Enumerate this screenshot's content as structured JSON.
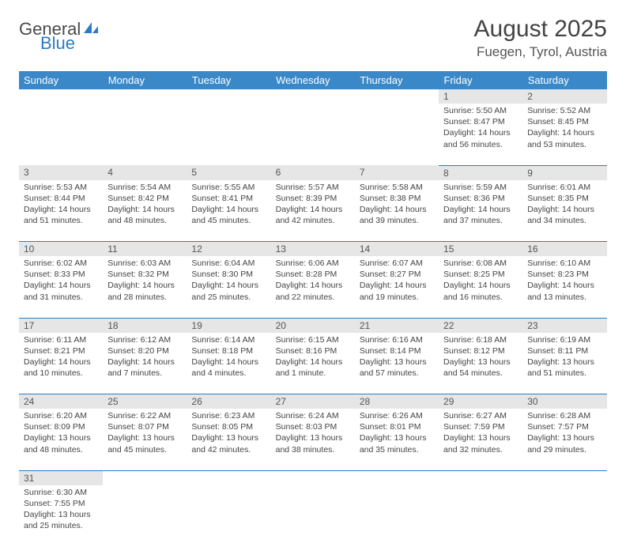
{
  "logo": {
    "text1": "General",
    "text2": "Blue"
  },
  "title": "August 2025",
  "location": "Fuegen, Tyrol, Austria",
  "colors": {
    "header_bg": "#3a88c8",
    "header_fg": "#ffffff",
    "daynum_bg": "#e6e6e6",
    "rule": "#2a7cc4",
    "logo_gray": "#4a4a4a",
    "logo_blue": "#2a7cc4"
  },
  "weekdays": [
    "Sunday",
    "Monday",
    "Tuesday",
    "Wednesday",
    "Thursday",
    "Friday",
    "Saturday"
  ],
  "weeks": [
    [
      null,
      null,
      null,
      null,
      null,
      {
        "n": "1",
        "sr": "5:50 AM",
        "ss": "8:47 PM",
        "dl": "14 hours and 56 minutes."
      },
      {
        "n": "2",
        "sr": "5:52 AM",
        "ss": "8:45 PM",
        "dl": "14 hours and 53 minutes."
      }
    ],
    [
      {
        "n": "3",
        "sr": "5:53 AM",
        "ss": "8:44 PM",
        "dl": "14 hours and 51 minutes."
      },
      {
        "n": "4",
        "sr": "5:54 AM",
        "ss": "8:42 PM",
        "dl": "14 hours and 48 minutes."
      },
      {
        "n": "5",
        "sr": "5:55 AM",
        "ss": "8:41 PM",
        "dl": "14 hours and 45 minutes."
      },
      {
        "n": "6",
        "sr": "5:57 AM",
        "ss": "8:39 PM",
        "dl": "14 hours and 42 minutes."
      },
      {
        "n": "7",
        "sr": "5:58 AM",
        "ss": "8:38 PM",
        "dl": "14 hours and 39 minutes."
      },
      {
        "n": "8",
        "sr": "5:59 AM",
        "ss": "8:36 PM",
        "dl": "14 hours and 37 minutes."
      },
      {
        "n": "9",
        "sr": "6:01 AM",
        "ss": "8:35 PM",
        "dl": "14 hours and 34 minutes."
      }
    ],
    [
      {
        "n": "10",
        "sr": "6:02 AM",
        "ss": "8:33 PM",
        "dl": "14 hours and 31 minutes."
      },
      {
        "n": "11",
        "sr": "6:03 AM",
        "ss": "8:32 PM",
        "dl": "14 hours and 28 minutes."
      },
      {
        "n": "12",
        "sr": "6:04 AM",
        "ss": "8:30 PM",
        "dl": "14 hours and 25 minutes."
      },
      {
        "n": "13",
        "sr": "6:06 AM",
        "ss": "8:28 PM",
        "dl": "14 hours and 22 minutes."
      },
      {
        "n": "14",
        "sr": "6:07 AM",
        "ss": "8:27 PM",
        "dl": "14 hours and 19 minutes."
      },
      {
        "n": "15",
        "sr": "6:08 AM",
        "ss": "8:25 PM",
        "dl": "14 hours and 16 minutes."
      },
      {
        "n": "16",
        "sr": "6:10 AM",
        "ss": "8:23 PM",
        "dl": "14 hours and 13 minutes."
      }
    ],
    [
      {
        "n": "17",
        "sr": "6:11 AM",
        "ss": "8:21 PM",
        "dl": "14 hours and 10 minutes."
      },
      {
        "n": "18",
        "sr": "6:12 AM",
        "ss": "8:20 PM",
        "dl": "14 hours and 7 minutes."
      },
      {
        "n": "19",
        "sr": "6:14 AM",
        "ss": "8:18 PM",
        "dl": "14 hours and 4 minutes."
      },
      {
        "n": "20",
        "sr": "6:15 AM",
        "ss": "8:16 PM",
        "dl": "14 hours and 1 minute."
      },
      {
        "n": "21",
        "sr": "6:16 AM",
        "ss": "8:14 PM",
        "dl": "13 hours and 57 minutes."
      },
      {
        "n": "22",
        "sr": "6:18 AM",
        "ss": "8:12 PM",
        "dl": "13 hours and 54 minutes."
      },
      {
        "n": "23",
        "sr": "6:19 AM",
        "ss": "8:11 PM",
        "dl": "13 hours and 51 minutes."
      }
    ],
    [
      {
        "n": "24",
        "sr": "6:20 AM",
        "ss": "8:09 PM",
        "dl": "13 hours and 48 minutes."
      },
      {
        "n": "25",
        "sr": "6:22 AM",
        "ss": "8:07 PM",
        "dl": "13 hours and 45 minutes."
      },
      {
        "n": "26",
        "sr": "6:23 AM",
        "ss": "8:05 PM",
        "dl": "13 hours and 42 minutes."
      },
      {
        "n": "27",
        "sr": "6:24 AM",
        "ss": "8:03 PM",
        "dl": "13 hours and 38 minutes."
      },
      {
        "n": "28",
        "sr": "6:26 AM",
        "ss": "8:01 PM",
        "dl": "13 hours and 35 minutes."
      },
      {
        "n": "29",
        "sr": "6:27 AM",
        "ss": "7:59 PM",
        "dl": "13 hours and 32 minutes."
      },
      {
        "n": "30",
        "sr": "6:28 AM",
        "ss": "7:57 PM",
        "dl": "13 hours and 29 minutes."
      }
    ],
    [
      {
        "n": "31",
        "sr": "6:30 AM",
        "ss": "7:55 PM",
        "dl": "13 hours and 25 minutes."
      },
      null,
      null,
      null,
      null,
      null,
      null
    ]
  ],
  "labels": {
    "sunrise": "Sunrise:",
    "sunset": "Sunset:",
    "daylight": "Daylight:"
  }
}
